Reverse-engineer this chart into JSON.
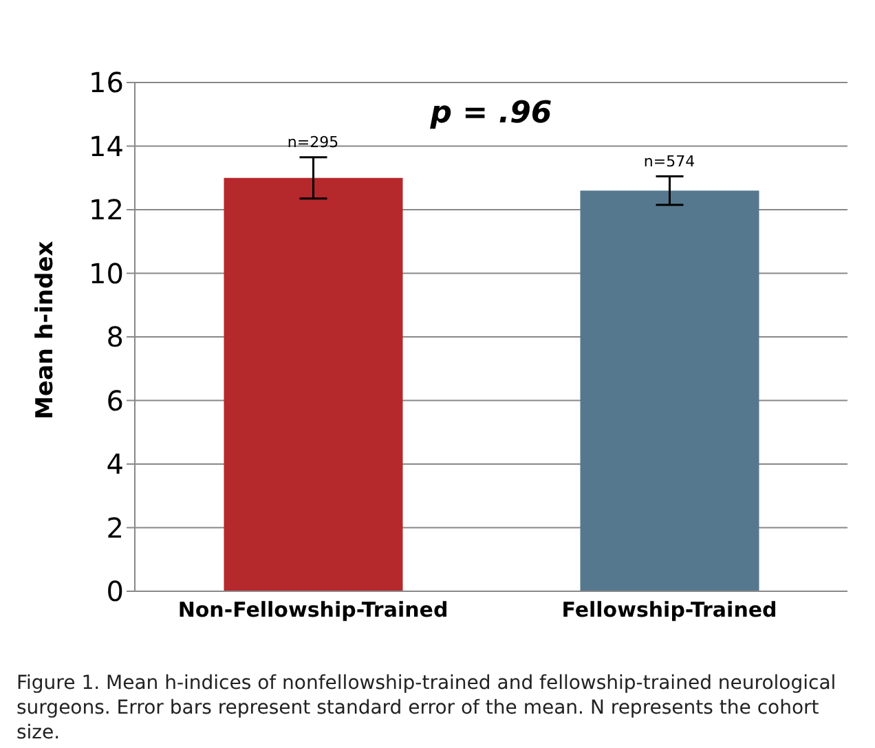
{
  "chart_data": {
    "type": "bar",
    "ylabel": "Mean h-index",
    "categories": [
      "Non-Fellowship-Trained",
      "Fellowship-Trained"
    ],
    "values": [
      13.0,
      12.6
    ],
    "colors": [
      "#b5282c",
      "#55788e"
    ],
    "errors": [
      0.65,
      0.45
    ],
    "ylim": [
      0,
      16
    ],
    "yticks": [
      0,
      2,
      4,
      6,
      8,
      10,
      12,
      14,
      16
    ],
    "grid": "y",
    "annotations": [
      {
        "text": "n=295",
        "x": "Non-Fellowship-Trained",
        "y": 13.7
      },
      {
        "text": "n=574",
        "x": "Fellowship-Trained",
        "y": 13.1
      },
      "p = .96",
      "Figure 1. Mean h-indices of nonfellowship-trained and fellowship-trained neurological surgeons. Error bars represent standard error of the mean. N represents the cohort size."
    ]
  }
}
